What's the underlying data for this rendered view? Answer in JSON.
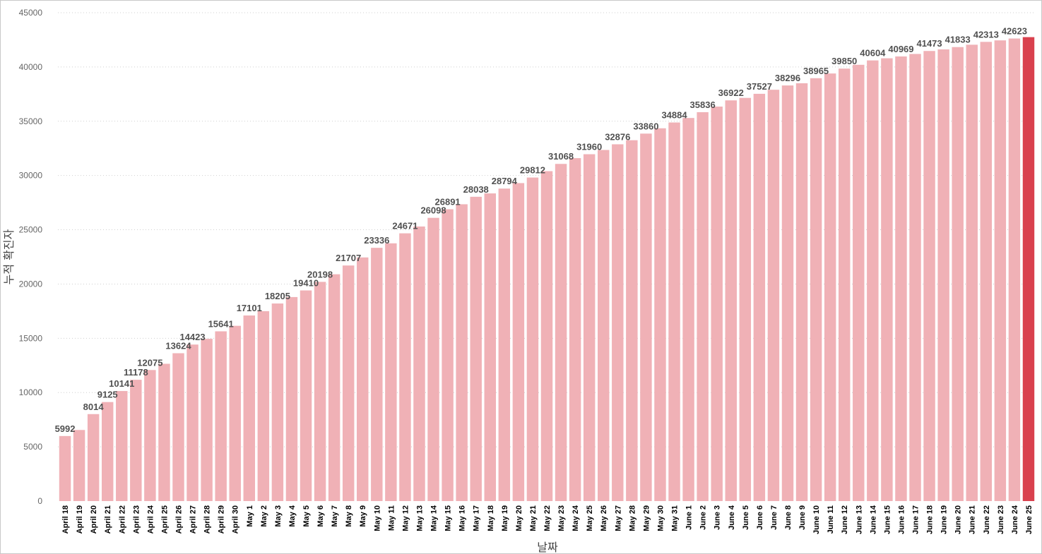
{
  "chart_data": {
    "type": "bar",
    "xlabel": "날짜",
    "ylabel": "누적 확진자",
    "ylim": [
      0,
      45000
    ],
    "yticks": [
      0,
      5000,
      10000,
      15000,
      20000,
      25000,
      30000,
      35000,
      40000,
      45000
    ],
    "grid": true,
    "categories": [
      "April 18",
      "April 19",
      "April 20",
      "April 21",
      "April 22",
      "April 23",
      "April 24",
      "April 25",
      "April 26",
      "April 27",
      "April 28",
      "April 29",
      "April 30",
      "May 1",
      "May 2",
      "May 3",
      "May 4",
      "May 5",
      "May 6",
      "May 7",
      "May 8",
      "May 9",
      "May 10",
      "May 11",
      "May 12",
      "May 13",
      "May 14",
      "May 15",
      "May 16",
      "May 17",
      "May 18",
      "May 19",
      "May 20",
      "May 21",
      "May 22",
      "May 23",
      "May 24",
      "May 25",
      "May 26",
      "May 27",
      "May 28",
      "May 29",
      "May 30",
      "May 31",
      "June 1",
      "June 2",
      "June 3",
      "June 4",
      "June 5",
      "June 6",
      "June 7",
      "June 8",
      "June 9",
      "June 10",
      "June 11",
      "June 12",
      "June 13",
      "June 14",
      "June 15",
      "June 16",
      "June 17",
      "June 18",
      "June 19",
      "June 20",
      "June 21",
      "June 22",
      "June 23",
      "June 24",
      "June 25"
    ],
    "values": [
      5992,
      6550,
      8014,
      9125,
      10141,
      11178,
      12075,
      12650,
      13624,
      14423,
      14950,
      15641,
      16150,
      17101,
      17500,
      18205,
      18800,
      19410,
      20198,
      20900,
      21707,
      22450,
      23336,
      23750,
      24671,
      25300,
      26098,
      26891,
      27350,
      28038,
      28350,
      28794,
      29300,
      29812,
      30400,
      31068,
      31600,
      31960,
      32350,
      32876,
      33250,
      33860,
      34350,
      34884,
      35300,
      35836,
      36350,
      36922,
      37150,
      37527,
      37900,
      38296,
      38500,
      38965,
      39400,
      39850,
      40200,
      40604,
      40800,
      40969,
      41200,
      41473,
      41620,
      41833,
      42050,
      42313,
      42450,
      42623,
      42750
    ],
    "data_labels": [
      "5992",
      "",
      "8014",
      "9125",
      "10141",
      "11178",
      "12075",
      "",
      "13624",
      "14423",
      "",
      "15641",
      "",
      "17101",
      "",
      "18205",
      "",
      "19410",
      "20198",
      "",
      "21707",
      "",
      "23336",
      "",
      "24671",
      "",
      "26098",
      "26891",
      "",
      "28038",
      "",
      "28794",
      "",
      "29812",
      "",
      "31068",
      "",
      "31960",
      "",
      "32876",
      "",
      "33860",
      "",
      "34884",
      "",
      "35836",
      "",
      "36922",
      "",
      "37527",
      "",
      "38296",
      "",
      "38965",
      "",
      "39850",
      "",
      "40604",
      "",
      "40969",
      "",
      "41473",
      "",
      "41833",
      "",
      "42313",
      "",
      "42623",
      ""
    ],
    "colors": {
      "bar": "#f0b1b6",
      "highlight": "#d9414e",
      "grid": "#cfcfcf"
    },
    "highlight_index": 68
  }
}
